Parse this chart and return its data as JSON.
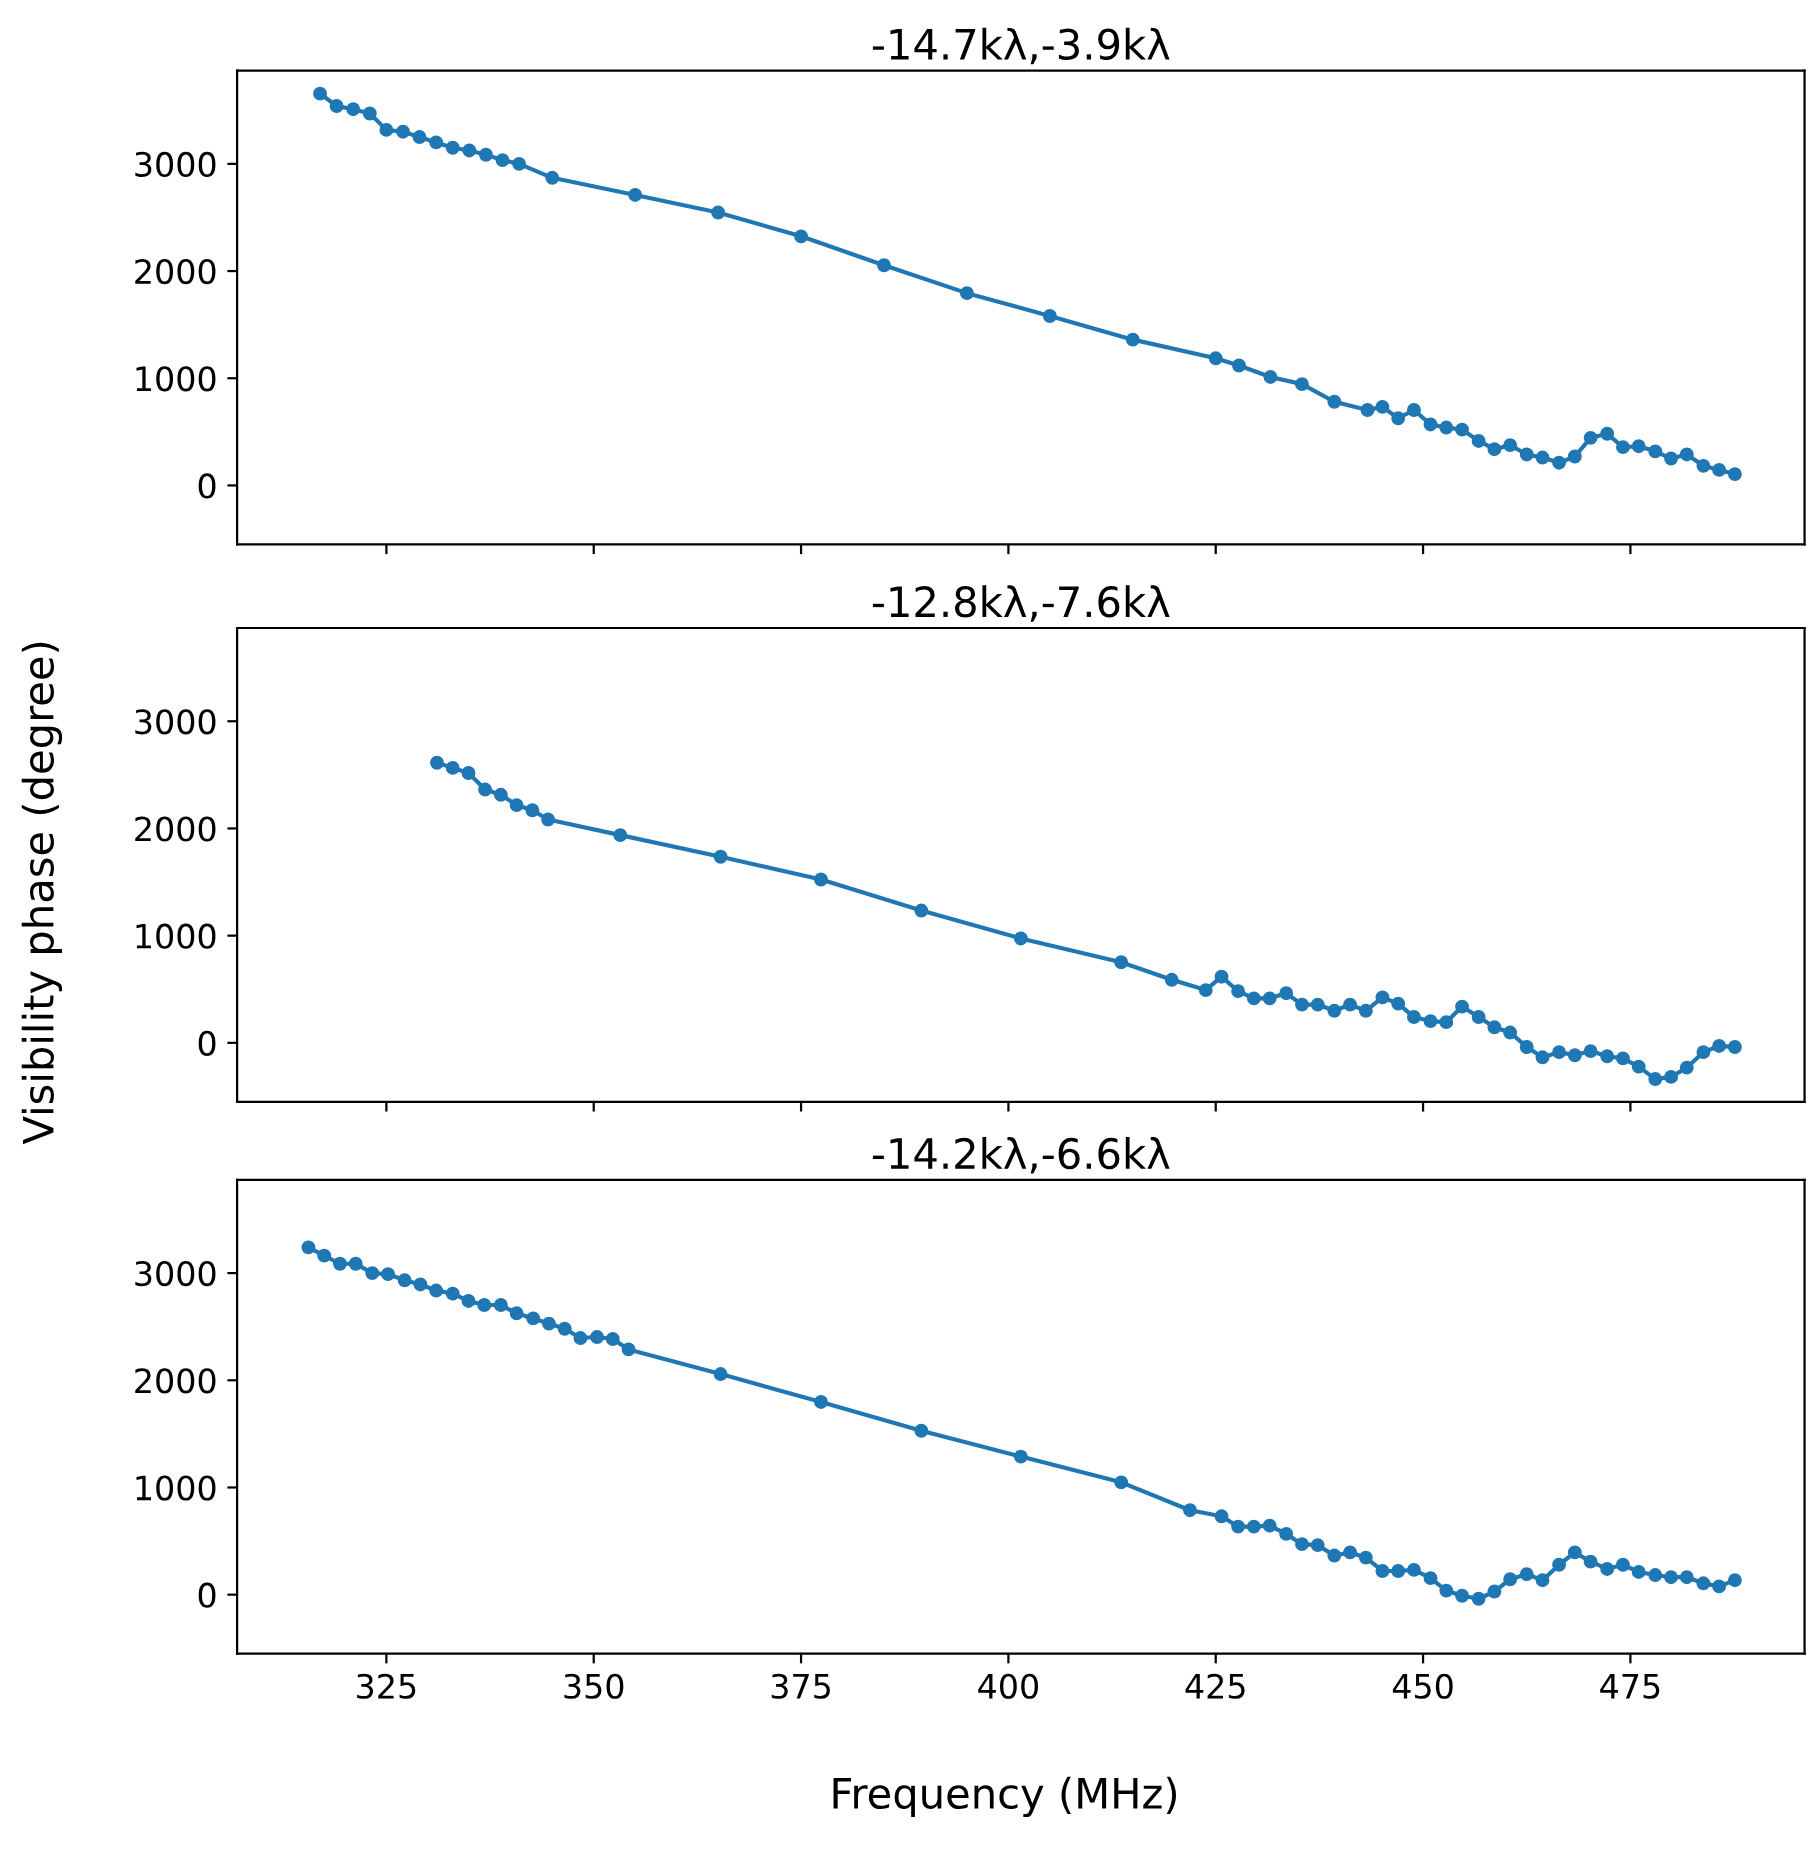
{
  "chart_data": [
    {
      "type": "line",
      "title": "-14.7kλ,-3.9kλ",
      "marker": "circle",
      "grid": false,
      "legend": false,
      "tick_labels": "y",
      "xlim": [
        307,
        496
      ],
      "xticks": [
        325,
        350,
        375,
        400,
        425,
        450,
        475
      ],
      "ylim": [
        -550,
        3870
      ],
      "yticks": [
        0,
        1000,
        2000,
        3000
      ],
      "series": [
        {
          "color": "#1f77b4",
          "x": [
            317,
            319,
            321,
            323,
            325,
            327,
            329,
            331,
            333,
            335,
            337,
            339,
            341,
            345,
            355,
            365,
            375,
            385,
            395,
            405,
            415,
            425,
            427.8,
            431.6,
            435.4,
            439.3,
            443.3,
            445.1,
            447.0,
            448.9,
            450.9,
            452.8,
            454.7,
            456.7,
            458.6,
            460.5,
            462.5,
            464.4,
            466.4,
            468.3,
            470.2,
            472.2,
            474.1,
            476.0,
            478.0,
            479.9,
            481.8,
            483.8,
            485.7,
            487.6
          ],
          "values": [
            3655,
            3540,
            3510,
            3470,
            3317,
            3300,
            3250,
            3200,
            3150,
            3125,
            3085,
            3035,
            3000,
            2870,
            2710,
            2546,
            2324,
            2054,
            1794,
            1581,
            1360,
            1186,
            1119,
            1012,
            945,
            781,
            704,
            733,
            627,
            704,
            569,
            540,
            521,
            415,
            338,
            376,
            289,
            260,
            212,
            270,
            444,
            482,
            357,
            366,
            318,
            251,
            289,
            183,
            145,
            106
          ]
        }
      ]
    },
    {
      "type": "line",
      "title": "-12.8kλ,-7.6kλ",
      "ylabel": "Visibility phase (degree)",
      "marker": "circle",
      "grid": false,
      "legend": false,
      "tick_labels": "y",
      "xlim": [
        307,
        496
      ],
      "xticks": [
        325,
        350,
        375,
        400,
        425,
        450,
        475
      ],
      "ylim": [
        -550,
        3870
      ],
      "yticks": [
        0,
        1000,
        2000,
        3000
      ],
      "series": [
        {
          "color": "#1f77b4",
          "x": [
            331.1,
            333.0,
            334.9,
            336.9,
            338.8,
            340.7,
            342.6,
            344.5,
            353.2,
            365.3,
            377.4,
            389.5,
            401.5,
            413.6,
            419.7,
            423.8,
            425.7,
            427.7,
            429.6,
            431.5,
            433.5,
            435.4,
            437.3,
            439.3,
            441.2,
            443.1,
            445.1,
            447.0,
            448.9,
            450.9,
            452.8,
            454.7,
            456.7,
            458.6,
            460.5,
            462.5,
            464.4,
            466.4,
            468.3,
            470.2,
            472.2,
            474.1,
            476.0,
            478.0,
            479.9,
            481.8,
            483.8,
            485.7,
            487.6
          ],
          "values": [
            2613,
            2565,
            2517,
            2363,
            2314,
            2218,
            2170,
            2083,
            1938,
            1736,
            1524,
            1234,
            974,
            752,
            588,
            492,
            617,
            482,
            415,
            415,
            463,
            357,
            357,
            299,
            357,
            299,
            424,
            366,
            241,
            203,
            193,
            338,
            241,
            145,
            96,
            -39,
            -135,
            -87,
            -116,
            -77,
            -125,
            -145,
            -222,
            -338,
            -318,
            -231,
            -87,
            -29,
            -39
          ]
        }
      ]
    },
    {
      "type": "line",
      "title": "-14.2kλ,-6.6kλ",
      "xlabel": "Frequency (MHz)",
      "marker": "circle",
      "grid": false,
      "legend": false,
      "xlim": [
        307,
        496
      ],
      "xticks": [
        325,
        350,
        375,
        400,
        425,
        450,
        475
      ],
      "ylim": [
        -550,
        3870
      ],
      "yticks": [
        0,
        1000,
        2000,
        3000
      ],
      "series": [
        {
          "color": "#1f77b4",
          "x": [
            315.6,
            317.5,
            319.4,
            321.3,
            323.3,
            325.2,
            327.2,
            329.1,
            331.0,
            333.0,
            334.9,
            336.8,
            338.8,
            340.7,
            342.7,
            344.6,
            346.5,
            348.4,
            350.4,
            352.3,
            354.2,
            365.3,
            377.4,
            389.5,
            401.5,
            413.6,
            421.9,
            425.7,
            427.7,
            429.6,
            431.5,
            433.5,
            435.4,
            437.3,
            439.3,
            441.2,
            443.1,
            445.1,
            447.0,
            448.9,
            450.9,
            452.8,
            454.7,
            456.7,
            458.6,
            460.5,
            462.5,
            464.4,
            466.4,
            468.3,
            470.2,
            472.2,
            474.1,
            476.0,
            478.0,
            479.9,
            481.8,
            483.8,
            485.7,
            487.6
          ],
          "values": [
            3240,
            3163,
            3087,
            3087,
            3000,
            2990,
            2933,
            2894,
            2837,
            2808,
            2740,
            2702,
            2702,
            2625,
            2577,
            2529,
            2481,
            2394,
            2404,
            2385,
            2288,
            2058,
            1798,
            1529,
            1288,
            1048,
            788,
            731,
            635,
            635,
            644,
            567,
            471,
            462,
            365,
            394,
            346,
            221,
            221,
            231,
            154,
            38,
            -10,
            -38,
            29,
            144,
            192,
            135,
            279,
            394,
            308,
            240,
            279,
            212,
            183,
            163,
            163,
            106,
            77,
            135
          ]
        }
      ]
    }
  ]
}
